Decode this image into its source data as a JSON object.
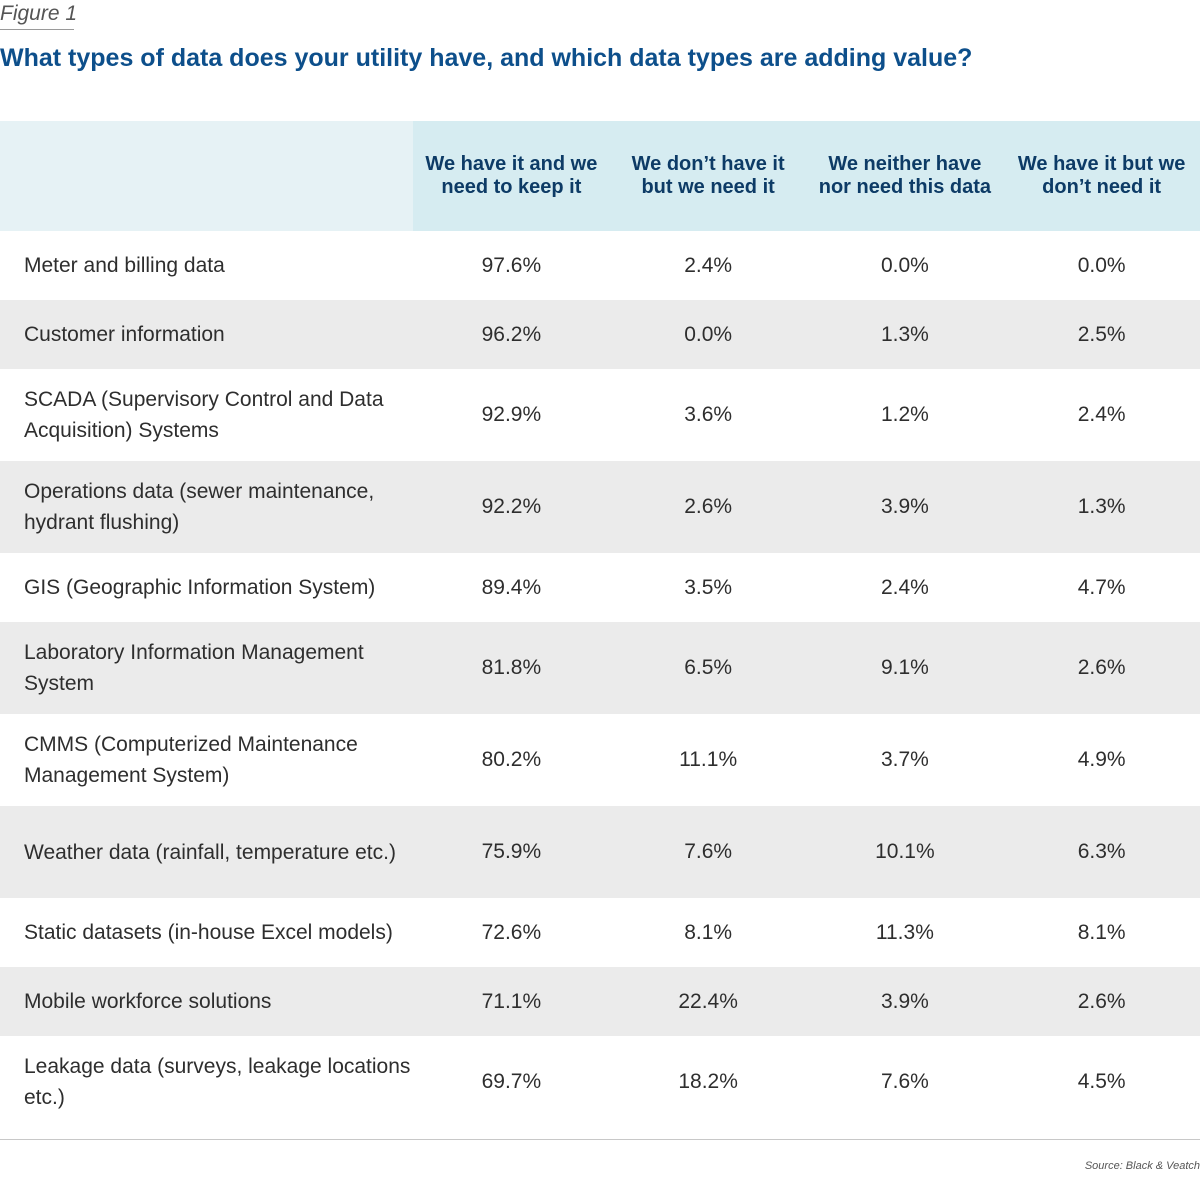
{
  "figure_label": "Figure 1",
  "title": "What types of data does your utility have, and which data types are adding value?",
  "source": "Source: Black & Veatch",
  "colors": {
    "title": "#0d4f8b",
    "header_bg": "#d6ecf1",
    "header_text": "#0d3b66",
    "row_shade": "#ebebeb"
  },
  "chart_data": {
    "type": "table",
    "title": "What types of data does your utility have, and which data types are adding value?",
    "columns": [
      "We have it and we need to keep it",
      "We don’t have it but we need it",
      "We neither have nor need this data",
      "We have it but we don’t need it"
    ],
    "rows": [
      {
        "label": "Meter and billing data",
        "values": [
          "97.6%",
          "2.4%",
          "0.0%",
          "0.0%"
        ]
      },
      {
        "label": "Customer information",
        "values": [
          "96.2%",
          "0.0%",
          "1.3%",
          "2.5%"
        ]
      },
      {
        "label": "SCADA (Supervisory Control and Data Acquisition) Systems",
        "values": [
          "92.9%",
          "3.6%",
          "1.2%",
          "2.4%"
        ]
      },
      {
        "label": "Operations data (sewer maintenance, hydrant flushing)",
        "values": [
          "92.2%",
          "2.6%",
          "3.9%",
          "1.3%"
        ]
      },
      {
        "label": "GIS (Geographic Information System)",
        "values": [
          "89.4%",
          "3.5%",
          "2.4%",
          "4.7%"
        ]
      },
      {
        "label": "Laboratory Information Management System",
        "values": [
          "81.8%",
          "6.5%",
          "9.1%",
          "2.6%"
        ]
      },
      {
        "label": "CMMS (Computerized Maintenance Management System)",
        "values": [
          "80.2%",
          "11.1%",
          "3.7%",
          "4.9%"
        ]
      },
      {
        "label": "Weather data (rainfall, temperature etc.)",
        "values": [
          "75.9%",
          "7.6%",
          "10.1%",
          "6.3%"
        ]
      },
      {
        "label": "Static datasets (in-house Excel models)",
        "values": [
          "72.6%",
          "8.1%",
          "11.3%",
          "8.1%"
        ]
      },
      {
        "label": "Mobile workforce solutions",
        "values": [
          "71.1%",
          "22.4%",
          "3.9%",
          "2.6%"
        ]
      },
      {
        "label": "Leakage data (surveys, leakage locations etc.)",
        "values": [
          "69.7%",
          "18.2%",
          "7.6%",
          "4.5%"
        ]
      }
    ]
  }
}
